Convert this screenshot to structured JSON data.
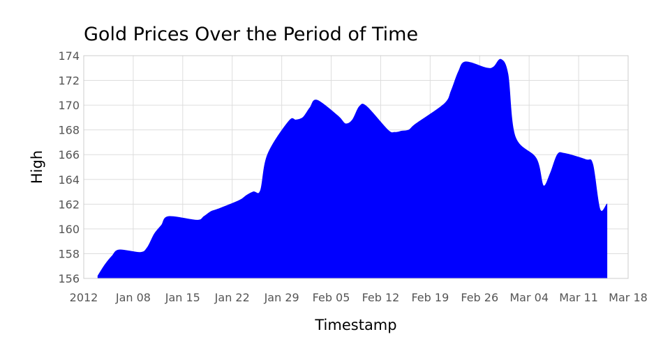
{
  "chart_data": {
    "type": "area",
    "title": "Gold Prices Over the Period of Time",
    "xlabel": "Timestamp",
    "ylabel": "High",
    "xlim": [
      "2012-01-01",
      "2012-03-18"
    ],
    "ylim": [
      156,
      174
    ],
    "grid": true,
    "legend": "none",
    "x_ticks": [
      "2012-01-01",
      "2012-01-08",
      "2012-01-15",
      "2012-01-22",
      "2012-01-29",
      "2012-02-05",
      "2012-02-12",
      "2012-02-19",
      "2012-02-26",
      "2012-03-04",
      "2012-03-11",
      "2012-03-18"
    ],
    "x_tick_labels": [
      "2012",
      "Jan 08",
      "Jan 15",
      "Jan 22",
      "Jan 29",
      "Feb 05",
      "Feb 12",
      "Feb 19",
      "Feb 26",
      "Mar 04",
      "Mar 11",
      "Mar 18"
    ],
    "y_ticks": [
      156,
      158,
      160,
      162,
      164,
      166,
      168,
      170,
      172,
      174
    ],
    "series": [
      {
        "color": "#0000ff",
        "x": [
          "2012-01-03",
          "2012-01-04",
          "2012-01-05",
          "2012-01-06",
          "2012-01-09",
          "2012-01-10",
          "2012-01-11",
          "2012-01-12",
          "2012-01-13",
          "2012-01-17",
          "2012-01-18",
          "2012-01-19",
          "2012-01-20",
          "2012-01-23",
          "2012-01-24",
          "2012-01-25",
          "2012-01-26",
          "2012-01-27",
          "2012-01-30",
          "2012-01-31",
          "2012-02-01",
          "2012-02-02",
          "2012-02-03",
          "2012-02-06",
          "2012-02-07",
          "2012-02-08",
          "2012-02-09",
          "2012-02-10",
          "2012-02-13",
          "2012-02-14",
          "2012-02-15",
          "2012-02-16",
          "2012-02-17",
          "2012-02-21",
          "2012-02-22",
          "2012-02-23",
          "2012-02-24",
          "2012-02-27",
          "2012-02-28",
          "2012-02-29",
          "2012-03-01",
          "2012-03-02",
          "2012-03-05",
          "2012-03-06",
          "2012-03-07",
          "2012-03-08",
          "2012-03-09",
          "2012-03-12",
          "2012-03-13",
          "2012-03-14",
          "2012-03-15"
        ],
        "values": [
          156.2,
          157.1,
          157.8,
          158.3,
          158.1,
          158.5,
          159.6,
          160.3,
          161.0,
          160.7,
          161.0,
          161.4,
          161.6,
          162.3,
          162.7,
          163.0,
          163.1,
          166.0,
          168.7,
          168.8,
          169.0,
          169.8,
          170.4,
          169.1,
          168.5,
          168.8,
          169.9,
          169.9,
          168.0,
          167.8,
          167.9,
          168.0,
          168.5,
          170.1,
          171.2,
          172.7,
          173.5,
          173.0,
          173.1,
          173.7,
          172.5,
          167.5,
          165.7,
          163.5,
          164.5,
          166.0,
          166.1,
          165.6,
          165.2,
          161.6,
          162.0
        ]
      }
    ]
  }
}
